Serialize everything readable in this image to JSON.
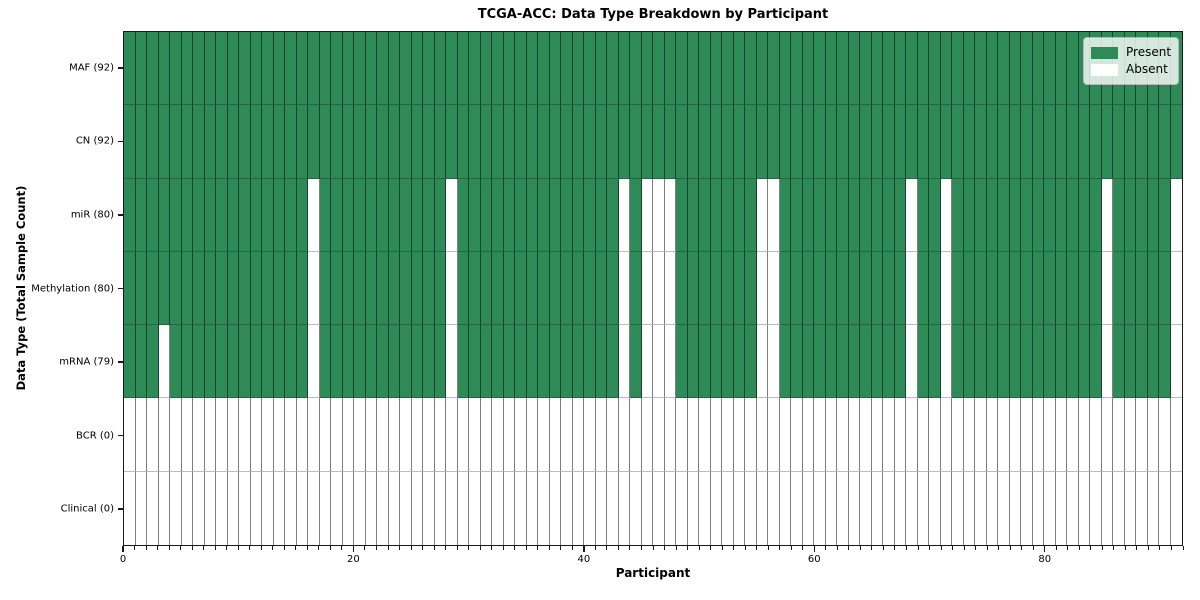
{
  "chart_data": {
    "type": "heatmap",
    "title": "TCGA-ACC: Data Type Breakdown by Participant",
    "xlabel": "Participant",
    "ylabel": "Data Type (Total Sample Count)",
    "n_participants": 92,
    "x_axis_range": [
      0,
      92
    ],
    "x_ticks": [
      0,
      20,
      40,
      60,
      80
    ],
    "grid": true,
    "legend_position": "upper right",
    "rows": [
      {
        "label": "MAF (92)",
        "present_count": 92,
        "absent_participants": []
      },
      {
        "label": "CN (92)",
        "present_count": 92,
        "absent_participants": []
      },
      {
        "label": "miR (80)",
        "present_count": 80,
        "absent_participants": [
          16,
          28,
          43,
          45,
          46,
          47,
          55,
          56,
          68,
          71,
          85,
          91
        ]
      },
      {
        "label": "Methylation (80)",
        "present_count": 80,
        "absent_participants": [
          16,
          28,
          43,
          45,
          46,
          47,
          55,
          56,
          68,
          71,
          85,
          91
        ]
      },
      {
        "label": "mRNA (79)",
        "present_count": 79,
        "absent_participants": [
          3,
          16,
          28,
          43,
          45,
          46,
          47,
          55,
          56,
          68,
          71,
          85,
          91
        ]
      },
      {
        "label": "BCR (0)",
        "present_count": 0,
        "absent_participants": "all"
      },
      {
        "label": "Clinical (0)",
        "present_count": 0,
        "absent_participants": "all"
      }
    ],
    "legend": [
      {
        "label": "Present",
        "color": "#2e8b57"
      },
      {
        "label": "Absent",
        "color": "#ffffff"
      }
    ],
    "colors": {
      "present": "#2e8b57",
      "absent": "#ffffff",
      "grid_line": "rgba(0,0,0,0.5)"
    }
  }
}
